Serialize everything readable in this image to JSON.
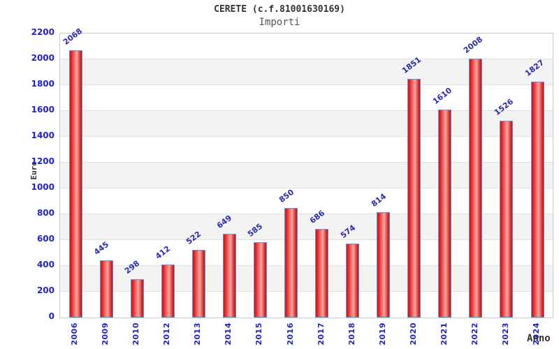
{
  "title": "CERETE (c.f.81001630169)",
  "subtitle": "Importi",
  "chart_data": {
    "type": "bar",
    "title": "CERETE (c.f.81001630169)",
    "subtitle": "Importi",
    "xlabel": "Anno",
    "ylabel": "Euro",
    "categories": [
      "2006",
      "2009",
      "2010",
      "2012",
      "2013",
      "2014",
      "2015",
      "2016",
      "2017",
      "2018",
      "2019",
      "2020",
      "2021",
      "2022",
      "2023",
      "2024"
    ],
    "values": [
      2068,
      445,
      298,
      412,
      522,
      649,
      585,
      850,
      686,
      574,
      814,
      1851,
      1610,
      2008,
      1526,
      1827
    ],
    "ylim": [
      0,
      2200
    ],
    "ytick_step": 200,
    "yticks": [
      0,
      200,
      400,
      600,
      800,
      1000,
      1200,
      1400,
      1600,
      1800,
      2000,
      2200
    ],
    "grid": true,
    "legend": false,
    "value_labels_rotated": true,
    "colors": {
      "background": "#ffffff",
      "band": "#f3f3f3",
      "gridline": "#e0e0e0",
      "plot_border": "#c9c9c9",
      "bar_edge": "#c01414",
      "bar_mid": "#f2a9a2",
      "bar_border": "#5599dd",
      "tick_text": "#2222cc",
      "value_text": "#2a2ab8",
      "title_text": "#333333",
      "subtitle_text": "#555555",
      "axis_label_text": "#333333"
    }
  }
}
